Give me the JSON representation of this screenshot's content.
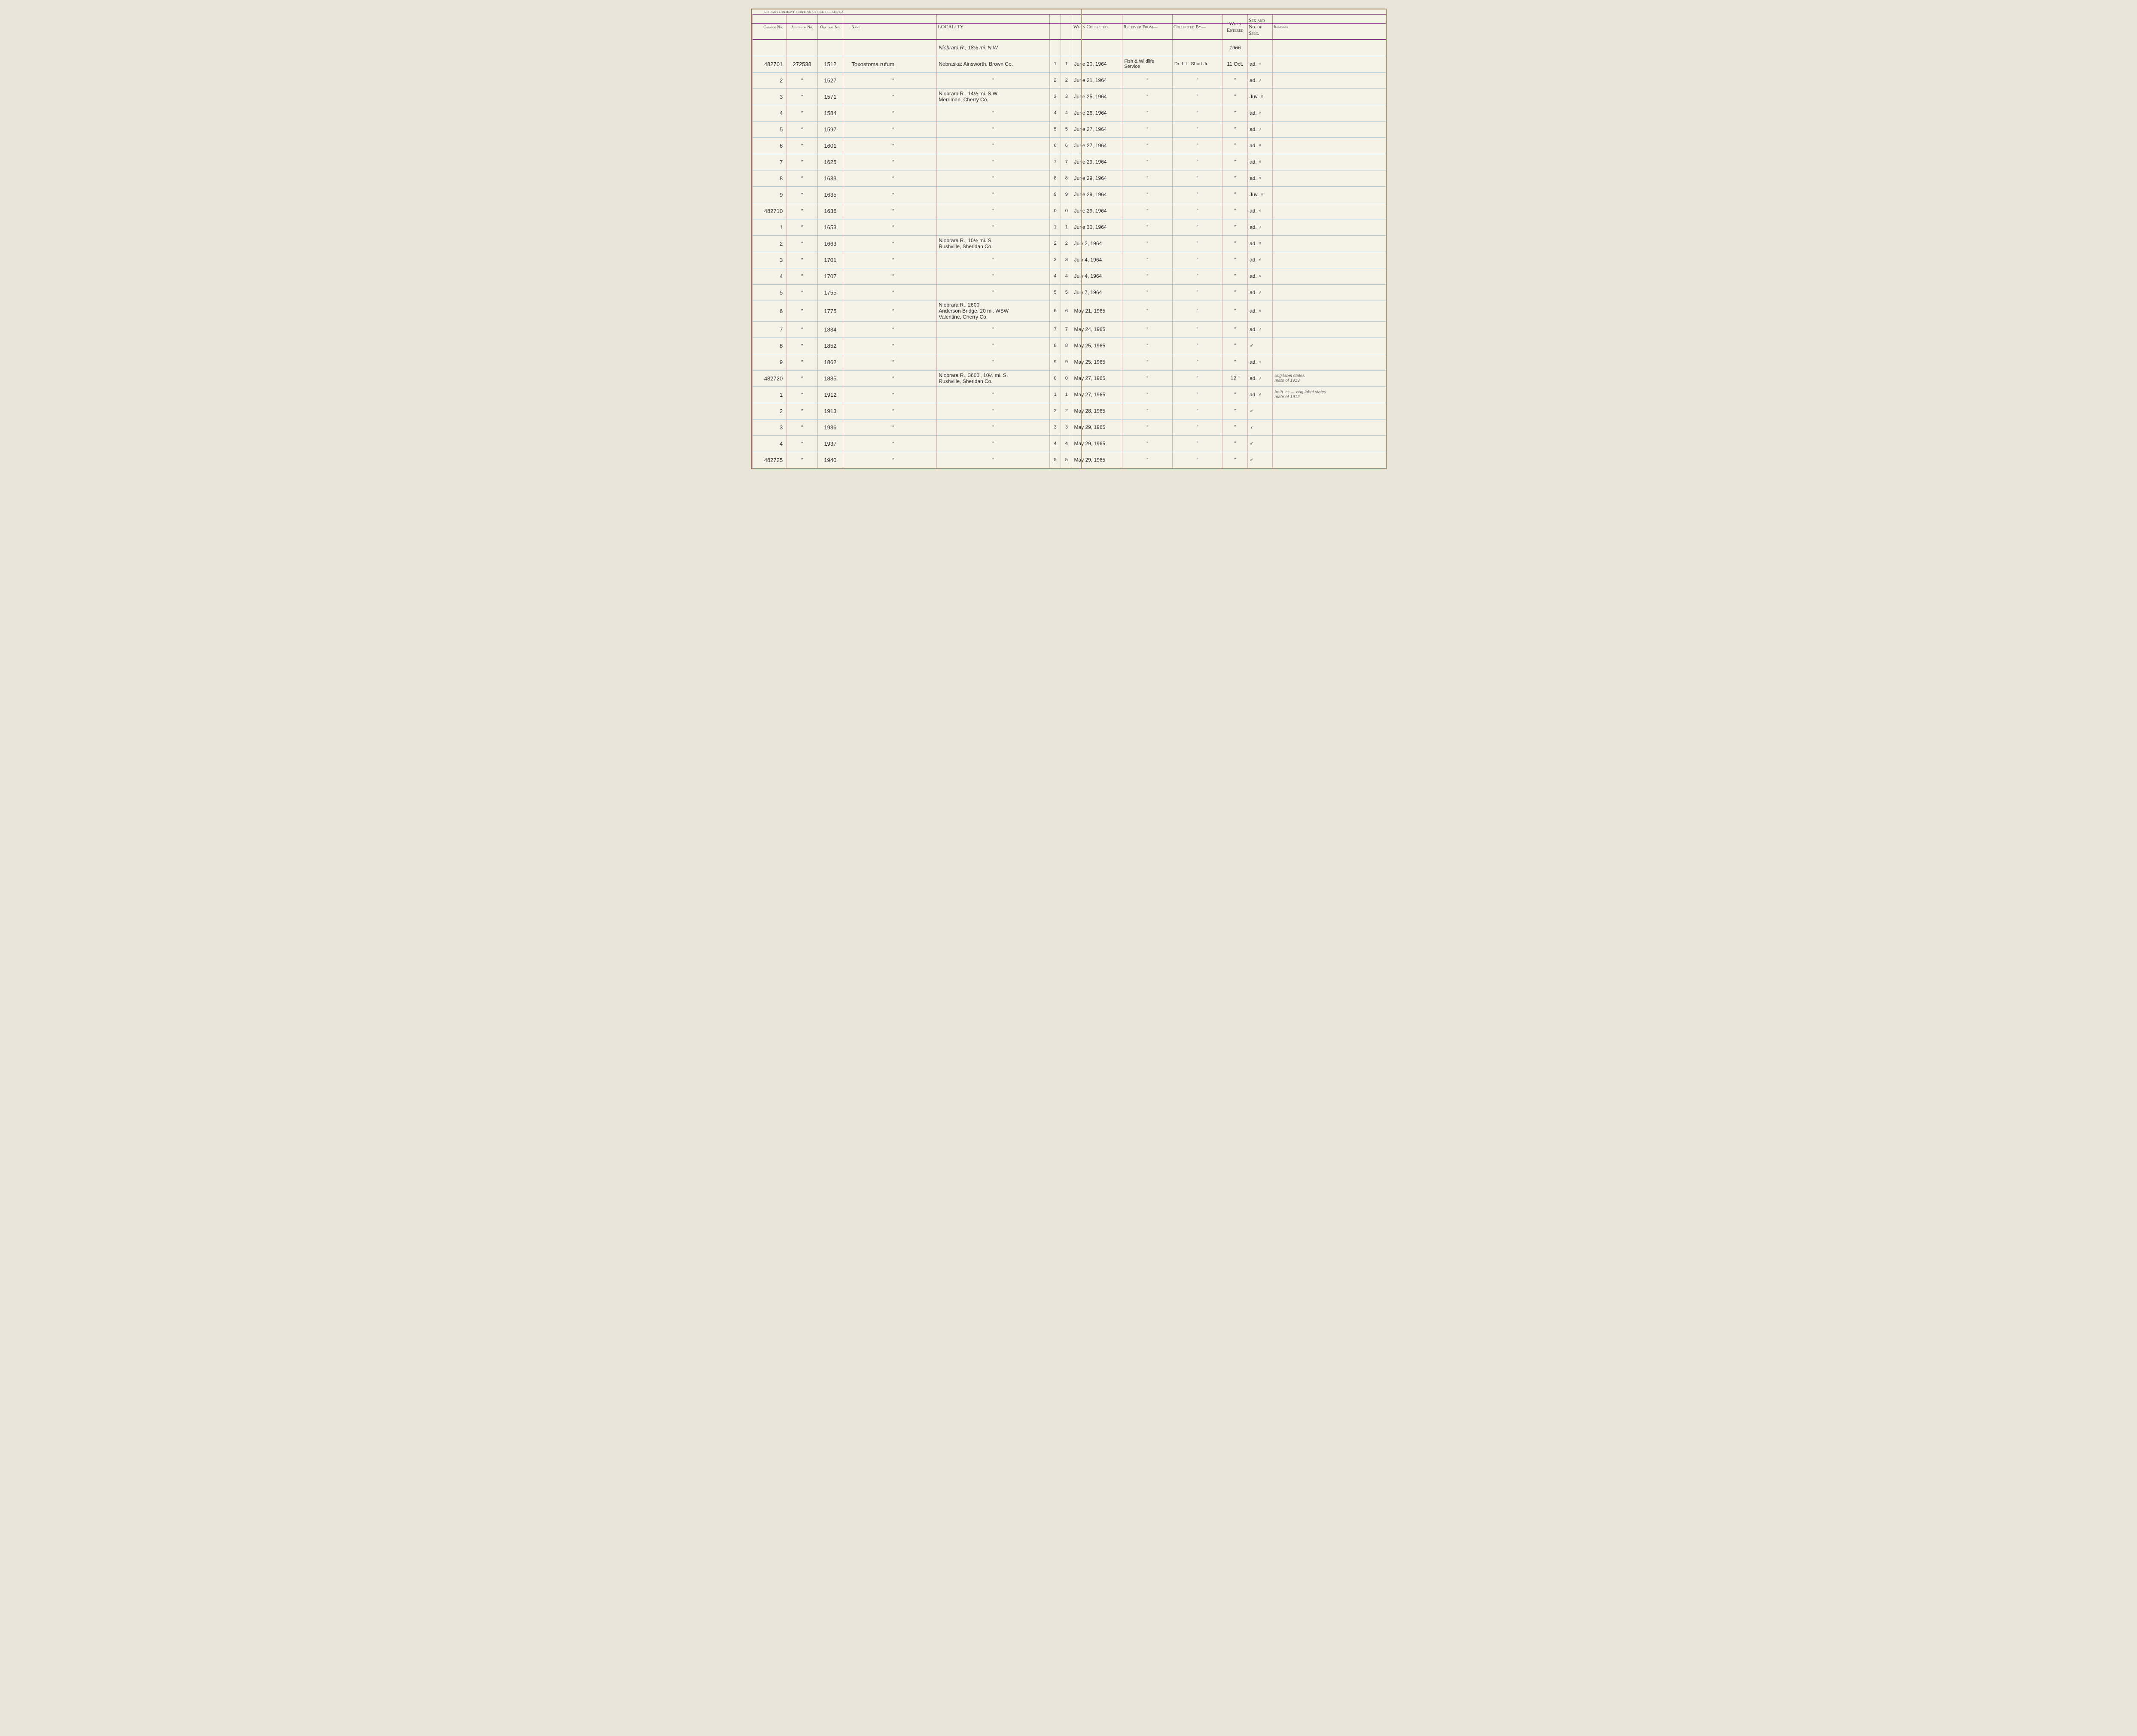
{
  "header_note": "U.S. GOVERNMENT PRINTING OFFICE   16—74591-2",
  "columns": {
    "catalog": "Catalog\nNo.",
    "accession": "Accession\nNo.",
    "original": "Original\nNo.",
    "name": "Name",
    "locality": "LOCALITY",
    "idx_left": "",
    "idx_right": "",
    "collected": "When\nCollected",
    "received": "Received From—",
    "collectedby": "Collected By—",
    "entered": "When\nEntered",
    "sex": "Sex and\nNo. of\nSpec.",
    "remarks": "Remarks"
  },
  "year_row": {
    "locality": "Niobrara R., 18½ mi. N.W.",
    "entered": "1966"
  },
  "rows": [
    {
      "catalog": "482701",
      "accession": "272538",
      "original": "1512",
      "name": "Toxostoma   rufum",
      "locality": "Nebraska: Ainsworth, Brown Co.",
      "idx": "1",
      "collected": "June 20, 1964",
      "received": "Fish & Wildlife\nService",
      "collectedby": "Dr. L.L. Short Jr.",
      "entered": "11 Oct.",
      "sex": "ad. ♂",
      "remarks": ""
    },
    {
      "catalog": "2",
      "accession": "\"",
      "original": "1527",
      "name": "\"",
      "locality": "\"",
      "idx": "2",
      "collected": "June 21, 1964",
      "received": "\"",
      "collectedby": "\"",
      "entered": "\"",
      "sex": "ad. ♂",
      "remarks": ""
    },
    {
      "catalog": "3",
      "accession": "\"",
      "original": "1571",
      "name": "\"",
      "locality": "Niobrara R., 14½ mi. S.W.\nMerriman, Cherry Co.",
      "idx": "3",
      "collected": "June 25, 1964",
      "received": "\"",
      "collectedby": "\"",
      "entered": "\"",
      "sex": "Juv. ♀",
      "remarks": ""
    },
    {
      "catalog": "4",
      "accession": "\"",
      "original": "1584",
      "name": "\"",
      "locality": "\"",
      "idx": "4",
      "collected": "June 26, 1964",
      "received": "\"",
      "collectedby": "\"",
      "entered": "\"",
      "sex": "ad. ♂",
      "remarks": ""
    },
    {
      "catalog": "5",
      "accession": "\"",
      "original": "1597",
      "name": "\"",
      "locality": "\"",
      "idx": "5",
      "collected": "June 27, 1964",
      "received": "\"",
      "collectedby": "\"",
      "entered": "\"",
      "sex": "ad. ♂",
      "remarks": ""
    },
    {
      "catalog": "6",
      "accession": "\"",
      "original": "1601",
      "name": "\"",
      "locality": "\"",
      "idx": "6",
      "collected": "June 27, 1964",
      "received": "\"",
      "collectedby": "\"",
      "entered": "\"",
      "sex": "ad. ♀",
      "remarks": ""
    },
    {
      "catalog": "7",
      "accession": "\"",
      "original": "1625",
      "name": "\"",
      "locality": "\"",
      "idx": "7",
      "collected": "June 29, 1964",
      "received": "\"",
      "collectedby": "\"",
      "entered": "\"",
      "sex": "ad. ♀",
      "remarks": ""
    },
    {
      "catalog": "8",
      "accession": "\"",
      "original": "1633",
      "name": "\"",
      "locality": "\"",
      "idx": "8",
      "collected": "June 29, 1964",
      "received": "\"",
      "collectedby": "\"",
      "entered": "\"",
      "sex": "ad. ♀",
      "remarks": ""
    },
    {
      "catalog": "9",
      "accession": "\"",
      "original": "1635",
      "name": "\"",
      "locality": "\"",
      "idx": "9",
      "collected": "June 29, 1964",
      "received": "\"",
      "collectedby": "\"",
      "entered": "\"",
      "sex": "Juv. ♀",
      "remarks": ""
    },
    {
      "catalog": "482710",
      "accession": "\"",
      "original": "1636",
      "name": "\"",
      "locality": "\"",
      "idx": "0",
      "collected": "June 29, 1964",
      "received": "\"",
      "collectedby": "\"",
      "entered": "\"",
      "sex": "ad. ♂",
      "remarks": ""
    },
    {
      "catalog": "1",
      "accession": "\"",
      "original": "1653",
      "name": "\"",
      "locality": "\"",
      "idx": "1",
      "collected": "June 30, 1964",
      "received": "\"",
      "collectedby": "\"",
      "entered": "\"",
      "sex": "ad. ♂",
      "remarks": ""
    },
    {
      "catalog": "2",
      "accession": "\"",
      "original": "1663",
      "name": "\"",
      "locality": "Niobrara R., 10½ mi. S.\nRushville, Sheridan Co.",
      "idx": "2",
      "collected": "July 2, 1964",
      "received": "\"",
      "collectedby": "\"",
      "entered": "\"",
      "sex": "ad. ♀",
      "remarks": ""
    },
    {
      "catalog": "3",
      "accession": "\"",
      "original": "1701",
      "name": "\"",
      "locality": "\"",
      "idx": "3",
      "collected": "July 4, 1964",
      "received": "\"",
      "collectedby": "\"",
      "entered": "\"",
      "sex": "ad. ♂",
      "remarks": ""
    },
    {
      "catalog": "4",
      "accession": "\"",
      "original": "1707",
      "name": "\"",
      "locality": "\"",
      "idx": "4",
      "collected": "July 4, 1964",
      "received": "\"",
      "collectedby": "\"",
      "entered": "\"",
      "sex": "ad. ♀",
      "remarks": ""
    },
    {
      "catalog": "5",
      "accession": "\"",
      "original": "1755",
      "name": "\"",
      "locality": "\"",
      "idx": "5",
      "collected": "July 7, 1964",
      "received": "\"",
      "collectedby": "\"",
      "entered": "\"",
      "sex": "ad. ♂",
      "remarks": ""
    },
    {
      "catalog": "6",
      "accession": "\"",
      "original": "1775",
      "name": "\"",
      "locality": "Niobrara R., 2600'\nAnderson Bridge, 20 mi. WSW\nValentine, Cherry Co.",
      "idx": "6",
      "collected": "May 21, 1965",
      "received": "\"",
      "collectedby": "\"",
      "entered": "\"",
      "sex": "ad. ♀",
      "remarks": ""
    },
    {
      "catalog": "7",
      "accession": "\"",
      "original": "1834",
      "name": "\"",
      "locality": "\"",
      "idx": "7",
      "collected": "May 24, 1965",
      "received": "\"",
      "collectedby": "\"",
      "entered": "\"",
      "sex": "ad. ♂",
      "remarks": ""
    },
    {
      "catalog": "8",
      "accession": "\"",
      "original": "1852",
      "name": "\"",
      "locality": "\"",
      "idx": "8",
      "collected": "May 25, 1965",
      "received": "\"",
      "collectedby": "\"",
      "entered": "\"",
      "sex": "♂",
      "remarks": ""
    },
    {
      "catalog": "9",
      "accession": "\"",
      "original": "1862",
      "name": "\"",
      "locality": "\"",
      "idx": "9",
      "collected": "May 25, 1965",
      "received": "\"",
      "collectedby": "\"",
      "entered": "\"",
      "sex": "ad. ♂",
      "remarks": ""
    },
    {
      "catalog": "482720",
      "accession": "\"",
      "original": "1885",
      "name": "\"",
      "locality": "Niobrara R., 3600', 10½ mi. S.\nRushville, Sheridan Co.",
      "idx": "0",
      "collected": "May 27, 1965",
      "received": "\"",
      "collectedby": "\"",
      "entered": "12 \"",
      "sex": "ad. ♂",
      "remarks": "orig label states\nmate of 1913"
    },
    {
      "catalog": "1",
      "accession": "\"",
      "original": "1912",
      "name": "\"",
      "locality": "\"",
      "idx": "1",
      "collected": "May 27, 1965",
      "received": "\"",
      "collectedby": "\"",
      "entered": "\"",
      "sex": "ad. ♂",
      "remarks": "both ♂s ← orig label states\nmate of 1912"
    },
    {
      "catalog": "2",
      "accession": "\"",
      "original": "1913",
      "name": "\"",
      "locality": "\"",
      "idx": "2",
      "collected": "May 28, 1965",
      "received": "\"",
      "collectedby": "\"",
      "entered": "\"",
      "sex": "♂",
      "remarks": ""
    },
    {
      "catalog": "3",
      "accession": "\"",
      "original": "1936",
      "name": "\"",
      "locality": "\"",
      "idx": "3",
      "collected": "May 29, 1965",
      "received": "\"",
      "collectedby": "\"",
      "entered": "\"",
      "sex": "♀",
      "remarks": ""
    },
    {
      "catalog": "4",
      "accession": "\"",
      "original": "1937",
      "name": "\"",
      "locality": "\"",
      "idx": "4",
      "collected": "May 29, 1965",
      "received": "\"",
      "collectedby": "\"",
      "entered": "\"",
      "sex": "♂",
      "remarks": ""
    },
    {
      "catalog": "482725",
      "accession": "\"",
      "original": "1940",
      "name": "\"",
      "locality": "\"",
      "idx": "5",
      "collected": "May 29, 1965",
      "received": "\"",
      "collectedby": "\"",
      "entered": "\"",
      "sex": "♂",
      "remarks": ""
    }
  ]
}
